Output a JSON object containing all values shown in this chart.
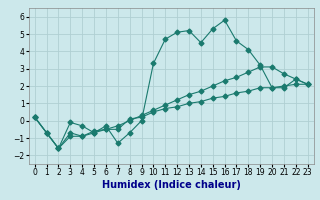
{
  "title": "",
  "xlabel": "Humidex (Indice chaleur)",
  "ylabel": "",
  "background_color": "#cce8eb",
  "grid_color": "#b0cfd3",
  "line_color": "#1a7a6e",
  "xlim": [
    -0.5,
    23.5
  ],
  "ylim": [
    -2.5,
    6.5
  ],
  "xticks": [
    0,
    1,
    2,
    3,
    4,
    5,
    6,
    7,
    8,
    9,
    10,
    11,
    12,
    13,
    14,
    15,
    16,
    17,
    18,
    19,
    20,
    21,
    22,
    23
  ],
  "yticks": [
    -2,
    -1,
    0,
    1,
    2,
    3,
    4,
    5,
    6
  ],
  "series1_x": [
    0,
    1,
    2,
    3,
    4,
    5,
    6,
    7,
    8,
    9,
    10,
    11,
    12,
    13,
    14,
    15,
    16,
    17,
    18,
    19,
    20,
    21,
    22,
    23
  ],
  "series1_y": [
    0.2,
    -0.7,
    -1.6,
    -0.1,
    -0.3,
    -0.7,
    -0.3,
    -1.3,
    -0.7,
    0.0,
    3.3,
    4.7,
    5.1,
    5.2,
    4.5,
    5.3,
    5.8,
    4.6,
    4.1,
    3.2,
    1.9,
    1.9,
    2.4,
    2.1
  ],
  "series2_x": [
    0,
    1,
    2,
    3,
    4,
    5,
    6,
    7,
    8,
    9,
    10,
    11,
    12,
    13,
    14,
    15,
    16,
    17,
    18,
    19,
    20,
    21,
    22,
    23
  ],
  "series2_y": [
    0.2,
    -0.7,
    -1.6,
    -0.7,
    -0.9,
    -0.6,
    -0.5,
    -0.5,
    0.1,
    0.2,
    0.5,
    0.7,
    0.8,
    1.0,
    1.1,
    1.3,
    1.4,
    1.6,
    1.7,
    1.9,
    1.9,
    2.0,
    2.1,
    2.1
  ],
  "series3_x": [
    0,
    1,
    2,
    3,
    4,
    5,
    6,
    7,
    8,
    9,
    10,
    11,
    12,
    13,
    14,
    15,
    16,
    17,
    18,
    19,
    20,
    21,
    22,
    23
  ],
  "series3_y": [
    0.2,
    -0.7,
    -1.6,
    -0.9,
    -0.9,
    -0.7,
    -0.5,
    -0.3,
    0.0,
    0.3,
    0.6,
    0.9,
    1.2,
    1.5,
    1.7,
    2.0,
    2.3,
    2.5,
    2.8,
    3.1,
    3.1,
    2.7,
    2.4,
    2.1
  ],
  "xlabel_color": "#00008b",
  "xlabel_fontsize": 7,
  "tick_fontsize": 5.5
}
